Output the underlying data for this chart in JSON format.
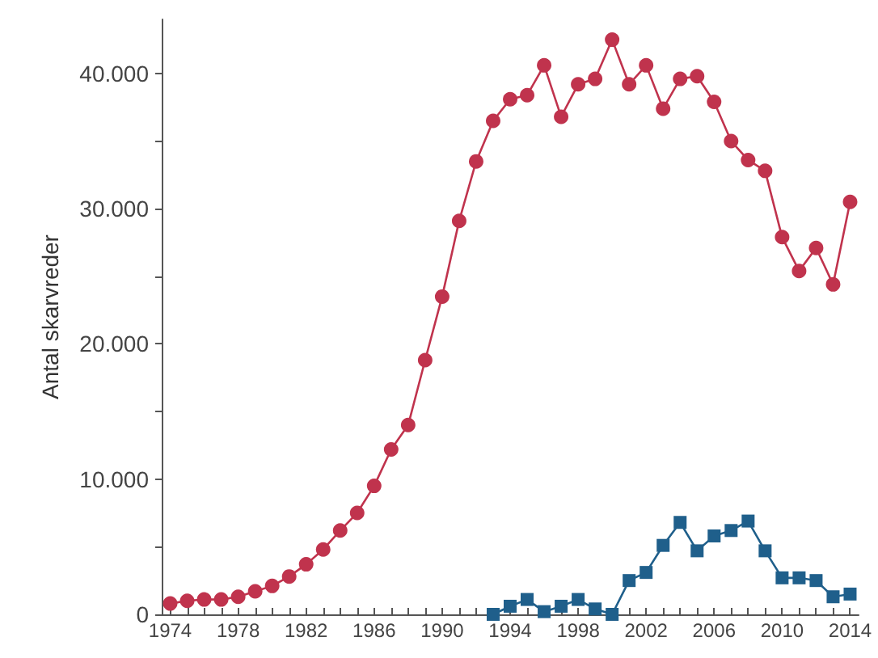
{
  "chart_data": {
    "type": "line",
    "ylabel": "Antal skarvreder",
    "grid": false,
    "xlim": [
      1973.5,
      2014.5
    ],
    "xticks": [
      {
        "value": 1974,
        "label": "1974"
      },
      {
        "value": 1975,
        "label": null
      },
      {
        "value": 1976,
        "label": null
      },
      {
        "value": 1977,
        "label": null
      },
      {
        "value": 1978,
        "label": "1978"
      },
      {
        "value": 1979,
        "label": null
      },
      {
        "value": 1980,
        "label": null
      },
      {
        "value": 1981,
        "label": null
      },
      {
        "value": 1982,
        "label": "1982"
      },
      {
        "value": 1983,
        "label": null
      },
      {
        "value": 1984,
        "label": null
      },
      {
        "value": 1985,
        "label": null
      },
      {
        "value": 1986,
        "label": "1986"
      },
      {
        "value": 1987,
        "label": null
      },
      {
        "value": 1988,
        "label": null
      },
      {
        "value": 1989,
        "label": null
      },
      {
        "value": 1990,
        "label": "1990"
      },
      {
        "value": 1991,
        "label": null
      },
      {
        "value": 1992,
        "label": null
      },
      {
        "value": 1993,
        "label": null
      },
      {
        "value": 1994,
        "label": "1994"
      },
      {
        "value": 1995,
        "label": null
      },
      {
        "value": 1996,
        "label": null
      },
      {
        "value": 1997,
        "label": null
      },
      {
        "value": 1998,
        "label": "1998"
      },
      {
        "value": 1999,
        "label": null
      },
      {
        "value": 2000,
        "label": null
      },
      {
        "value": 2001,
        "label": null
      },
      {
        "value": 2002,
        "label": "2002"
      },
      {
        "value": 2003,
        "label": null
      },
      {
        "value": 2004,
        "label": null
      },
      {
        "value": 2005,
        "label": null
      },
      {
        "value": 2006,
        "label": "2006"
      },
      {
        "value": 2007,
        "label": null
      },
      {
        "value": 2008,
        "label": null
      },
      {
        "value": 2009,
        "label": null
      },
      {
        "value": 2010,
        "label": "2010"
      },
      {
        "value": 2011,
        "label": null
      },
      {
        "value": 2012,
        "label": null
      },
      {
        "value": 2013,
        "label": null
      },
      {
        "value": 2014,
        "label": "2014"
      }
    ],
    "ylim": [
      0,
      44000
    ],
    "yticks": [
      {
        "value": 0,
        "label": "0"
      },
      {
        "value": 5000,
        "label": null
      },
      {
        "value": 10000,
        "label": "10.000"
      },
      {
        "value": 15000,
        "label": null
      },
      {
        "value": 20000,
        "label": "20.000"
      },
      {
        "value": 25000,
        "label": null
      },
      {
        "value": 30000,
        "label": "30.000"
      },
      {
        "value": 35000,
        "label": null
      },
      {
        "value": 40000,
        "label": "40.000"
      }
    ],
    "series": [
      {
        "color": "#c0334d",
        "marker": "circle",
        "x": [
          1974,
          1975,
          1976,
          1977,
          1978,
          1979,
          1980,
          1981,
          1982,
          1983,
          1984,
          1985,
          1986,
          1987,
          1988,
          1989,
          1990,
          1991,
          1992,
          1993,
          1994,
          1995,
          1996,
          1997,
          1998,
          1999,
          2000,
          2001,
          2002,
          2003,
          2004,
          2005,
          2006,
          2007,
          2008,
          2009,
          2010,
          2011,
          2012,
          2013,
          2014
        ],
        "values": [
          800,
          1000,
          1100,
          1100,
          1300,
          1700,
          2100,
          2800,
          3700,
          4800,
          6200,
          7500,
          9500,
          12200,
          14000,
          18800,
          23500,
          29100,
          33500,
          36500,
          38100,
          38400,
          40600,
          36800,
          39200,
          39600,
          42500,
          39200,
          40600,
          37400,
          39600,
          39800,
          37900,
          35000,
          33600,
          32800,
          27900,
          25400,
          27100,
          24400,
          30500
        ]
      },
      {
        "color": "#1f5f8b",
        "marker": "square",
        "x": [
          1993,
          1994,
          1995,
          1996,
          1997,
          1998,
          1999,
          2000,
          2001,
          2002,
          2003,
          2004,
          2005,
          2006,
          2007,
          2008,
          2009,
          2010,
          2011,
          2012,
          2013,
          2014
        ],
        "values": [
          0,
          600,
          1100,
          200,
          600,
          1100,
          400,
          0,
          2500,
          3100,
          5100,
          6800,
          4700,
          5800,
          6200,
          6900,
          4700,
          2700,
          2700,
          2500,
          1300,
          1500
        ]
      }
    ]
  }
}
